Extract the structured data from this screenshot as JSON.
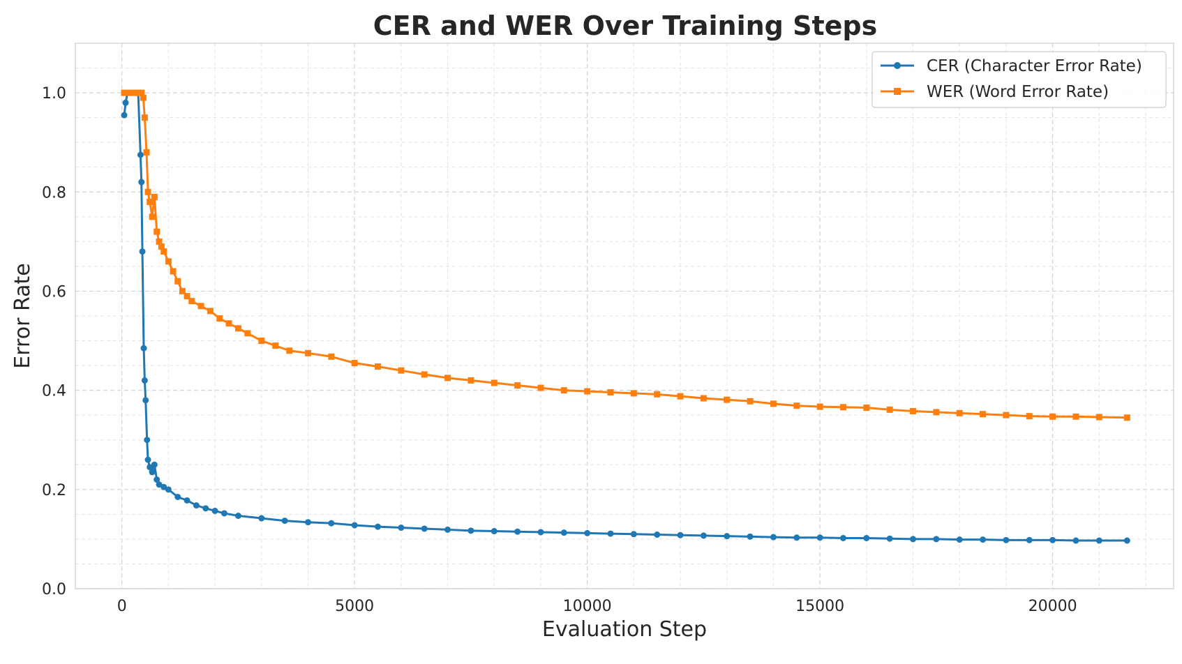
{
  "chart_data": {
    "type": "line",
    "title": "CER and WER Over Training Steps",
    "xlabel": "Evaluation Step",
    "ylabel": "Error Rate",
    "xlim": [
      -1000,
      22600
    ],
    "ylim": [
      0.0,
      1.1
    ],
    "grid": true,
    "legend_position": "top-right",
    "x_ticks": [
      0,
      5000,
      10000,
      15000,
      20000
    ],
    "x_tick_labels": [
      "0",
      "5000",
      "10000",
      "15000",
      "20000"
    ],
    "y_ticks": [
      0.0,
      0.2,
      0.4,
      0.6,
      0.8,
      1.0
    ],
    "y_tick_labels": [
      "0.0",
      "0.2",
      "0.4",
      "0.6",
      "0.8",
      "1.0"
    ],
    "x_minor_step": 1000,
    "y_minor_step": 0.05,
    "series": [
      {
        "name": "CER (Character Error Rate)",
        "color": "#1f77b4",
        "marker": "circle",
        "points": [
          [
            50,
            0.955
          ],
          [
            80,
            0.98
          ],
          [
            120,
            1.0
          ],
          [
            200,
            1.0
          ],
          [
            300,
            1.0
          ],
          [
            350,
            1.0
          ],
          [
            400,
            0.875
          ],
          [
            420,
            0.82
          ],
          [
            440,
            0.68
          ],
          [
            470,
            0.485
          ],
          [
            490,
            0.42
          ],
          [
            510,
            0.38
          ],
          [
            540,
            0.3
          ],
          [
            560,
            0.26
          ],
          [
            600,
            0.245
          ],
          [
            650,
            0.235
          ],
          [
            700,
            0.25
          ],
          [
            750,
            0.22
          ],
          [
            800,
            0.21
          ],
          [
            900,
            0.205
          ],
          [
            1000,
            0.2
          ],
          [
            1200,
            0.185
          ],
          [
            1400,
            0.178
          ],
          [
            1600,
            0.168
          ],
          [
            1800,
            0.162
          ],
          [
            2000,
            0.157
          ],
          [
            2200,
            0.152
          ],
          [
            2500,
            0.147
          ],
          [
            3000,
            0.142
          ],
          [
            3500,
            0.137
          ],
          [
            4000,
            0.134
          ],
          [
            4500,
            0.132
          ],
          [
            5000,
            0.128
          ],
          [
            5500,
            0.125
          ],
          [
            6000,
            0.123
          ],
          [
            6500,
            0.121
          ],
          [
            7000,
            0.119
          ],
          [
            7500,
            0.117
          ],
          [
            8000,
            0.116
          ],
          [
            8500,
            0.115
          ],
          [
            9000,
            0.114
          ],
          [
            9500,
            0.113
          ],
          [
            10000,
            0.112
          ],
          [
            10500,
            0.111
          ],
          [
            11000,
            0.11
          ],
          [
            11500,
            0.109
          ],
          [
            12000,
            0.108
          ],
          [
            12500,
            0.107
          ],
          [
            13000,
            0.106
          ],
          [
            13500,
            0.105
          ],
          [
            14000,
            0.104
          ],
          [
            14500,
            0.103
          ],
          [
            15000,
            0.103
          ],
          [
            15500,
            0.102
          ],
          [
            16000,
            0.102
          ],
          [
            16500,
            0.101
          ],
          [
            17000,
            0.1
          ],
          [
            17500,
            0.1
          ],
          [
            18000,
            0.099
          ],
          [
            18500,
            0.099
          ],
          [
            19000,
            0.098
          ],
          [
            19500,
            0.098
          ],
          [
            20000,
            0.098
          ],
          [
            20500,
            0.097
          ],
          [
            21000,
            0.097
          ],
          [
            21600,
            0.097
          ]
        ]
      },
      {
        "name": "WER (Word Error Rate)",
        "color": "#ff7f0e",
        "marker": "square",
        "points": [
          [
            50,
            1.0
          ],
          [
            150,
            1.0
          ],
          [
            250,
            1.0
          ],
          [
            350,
            1.0
          ],
          [
            420,
            1.0
          ],
          [
            460,
            0.99
          ],
          [
            490,
            0.95
          ],
          [
            530,
            0.88
          ],
          [
            560,
            0.8
          ],
          [
            600,
            0.78
          ],
          [
            650,
            0.75
          ],
          [
            700,
            0.79
          ],
          [
            750,
            0.72
          ],
          [
            800,
            0.7
          ],
          [
            850,
            0.69
          ],
          [
            900,
            0.68
          ],
          [
            1000,
            0.66
          ],
          [
            1100,
            0.64
          ],
          [
            1200,
            0.62
          ],
          [
            1300,
            0.6
          ],
          [
            1400,
            0.59
          ],
          [
            1500,
            0.58
          ],
          [
            1700,
            0.57
          ],
          [
            1900,
            0.56
          ],
          [
            2100,
            0.545
          ],
          [
            2300,
            0.535
          ],
          [
            2500,
            0.525
          ],
          [
            2700,
            0.515
          ],
          [
            3000,
            0.5
          ],
          [
            3300,
            0.49
          ],
          [
            3600,
            0.48
          ],
          [
            4000,
            0.475
          ],
          [
            4500,
            0.468
          ],
          [
            5000,
            0.455
          ],
          [
            5500,
            0.448
          ],
          [
            6000,
            0.44
          ],
          [
            6500,
            0.432
          ],
          [
            7000,
            0.425
          ],
          [
            7500,
            0.42
          ],
          [
            8000,
            0.415
          ],
          [
            8500,
            0.41
          ],
          [
            9000,
            0.405
          ],
          [
            9500,
            0.4
          ],
          [
            10000,
            0.398
          ],
          [
            10500,
            0.396
          ],
          [
            11000,
            0.394
          ],
          [
            11500,
            0.392
          ],
          [
            12000,
            0.388
          ],
          [
            12500,
            0.384
          ],
          [
            13000,
            0.381
          ],
          [
            13500,
            0.378
          ],
          [
            14000,
            0.373
          ],
          [
            14500,
            0.369
          ],
          [
            15000,
            0.367
          ],
          [
            15500,
            0.366
          ],
          [
            16000,
            0.365
          ],
          [
            16500,
            0.361
          ],
          [
            17000,
            0.358
          ],
          [
            17500,
            0.356
          ],
          [
            18000,
            0.354
          ],
          [
            18500,
            0.352
          ],
          [
            19000,
            0.35
          ],
          [
            19500,
            0.348
          ],
          [
            20000,
            0.347
          ],
          [
            20500,
            0.347
          ],
          [
            21000,
            0.346
          ],
          [
            21600,
            0.345
          ]
        ]
      }
    ]
  }
}
